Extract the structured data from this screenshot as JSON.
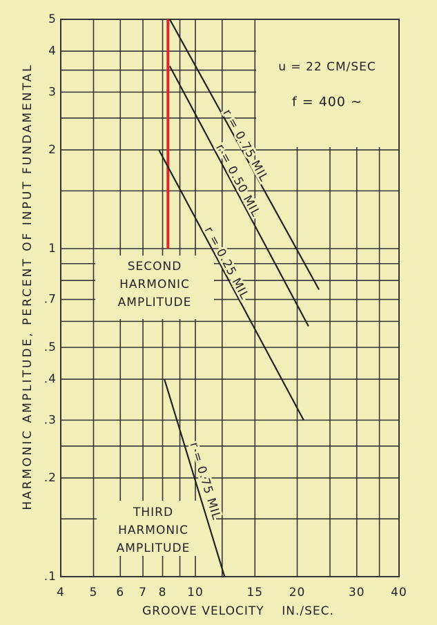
{
  "chart_data": {
    "type": "line",
    "xlabel": "GROOVE VELOCITY    IN./SEC.",
    "ylabel": "HARMONIC AMPLITUDE, PERCENT OF INPUT FUNDAMENTAL",
    "log_x": true,
    "log_y": true,
    "grid": true,
    "xlim": [
      4,
      40
    ],
    "ylim": [
      0.1,
      5
    ],
    "xticks": [
      4,
      5,
      6,
      7,
      8,
      10,
      15,
      20,
      30,
      40
    ],
    "yticks": [
      5,
      4,
      3,
      2,
      1,
      {
        "value": 0.7,
        "label": ".7"
      },
      {
        "value": 0.5,
        "label": ".5"
      },
      {
        "value": 0.4,
        "label": ".4"
      },
      {
        "value": 0.3,
        "label": ".3"
      },
      {
        "value": 0.2,
        "label": ".2"
      },
      {
        "value": 0.1,
        "label": ".1"
      }
    ],
    "xgrid_minor": [
      9,
      12,
      25,
      35
    ],
    "ygrid_minor": [
      0.15,
      0.25,
      0.6,
      0.8,
      0.9,
      1.5,
      2.5,
      3.5
    ],
    "annotations": [
      "u = 22 CM/SEC",
      "f = 400 ∼"
    ],
    "region_labels": [
      [
        "SECOND",
        "HARMONIC",
        "AMPLITUDE"
      ],
      [
        "THIRD",
        "HARMONIC",
        "AMPLITUDE"
      ]
    ],
    "marker": {
      "x": 8.3,
      "y": [
        1,
        5
      ],
      "color": "#e3232a"
    },
    "series": [
      {
        "name": "r = 0.75 MIL",
        "color": "#222222",
        "x": [
          8.4,
          23.2
        ],
        "values": [
          5,
          0.75
        ]
      },
      {
        "name": "r = 0.50 MIL",
        "color": "#222222",
        "x": [
          8.4,
          21.6
        ],
        "values": [
          3.6,
          0.58
        ]
      },
      {
        "name": "r = 0.25 MIL",
        "color": "#222222",
        "x": [
          7.8,
          20.9
        ],
        "values": [
          2,
          0.3
        ]
      },
      {
        "name": "r = 0.75 MIL",
        "color": "#222222",
        "x": [
          8.1,
          12.2
        ],
        "values": [
          0.4,
          0.1
        ]
      }
    ]
  }
}
